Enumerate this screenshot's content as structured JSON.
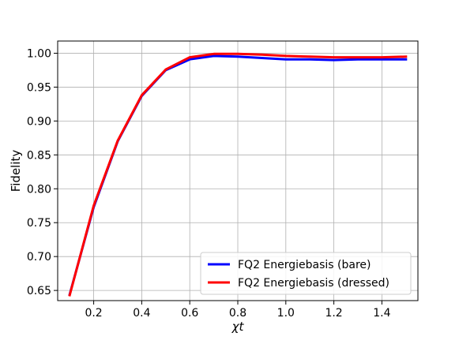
{
  "chart_data": {
    "type": "line",
    "xlabel": "χt",
    "ylabel": "Fidelity",
    "xlim": [
      0.05,
      1.55
    ],
    "ylim": [
      0.635,
      1.018
    ],
    "xticks": [
      0.2,
      0.4,
      0.6,
      0.8,
      1.0,
      1.2,
      1.4
    ],
    "xtick_labels": [
      "0.2",
      "0.4",
      "0.6",
      "0.8",
      "1.0",
      "1.2",
      "1.4"
    ],
    "yticks": [
      0.65,
      0.7,
      0.75,
      0.8,
      0.85,
      0.9,
      0.95,
      1.0
    ],
    "ytick_labels": [
      "0.65",
      "0.70",
      "0.75",
      "0.80",
      "0.85",
      "0.90",
      "0.95",
      "1.00"
    ],
    "grid": true,
    "legend_position": "lower-right",
    "x": [
      0.1,
      0.2,
      0.3,
      0.4,
      0.5,
      0.6,
      0.7,
      0.8,
      0.9,
      1.0,
      1.1,
      1.2,
      1.3,
      1.4,
      1.5
    ],
    "series": [
      {
        "name": "FQ2 Energiebasis (bare)",
        "color": "#0000ff",
        "values": [
          0.644,
          0.773,
          0.87,
          0.937,
          0.975,
          0.991,
          0.996,
          0.995,
          0.993,
          0.991,
          0.991,
          0.99,
          0.991,
          0.991,
          0.991
        ]
      },
      {
        "name": "FQ2 Energiebasis (dressed)",
        "color": "#ff0000",
        "values": [
          0.643,
          0.775,
          0.871,
          0.938,
          0.976,
          0.994,
          0.999,
          0.999,
          0.998,
          0.996,
          0.995,
          0.994,
          0.994,
          0.994,
          0.995
        ]
      }
    ]
  }
}
